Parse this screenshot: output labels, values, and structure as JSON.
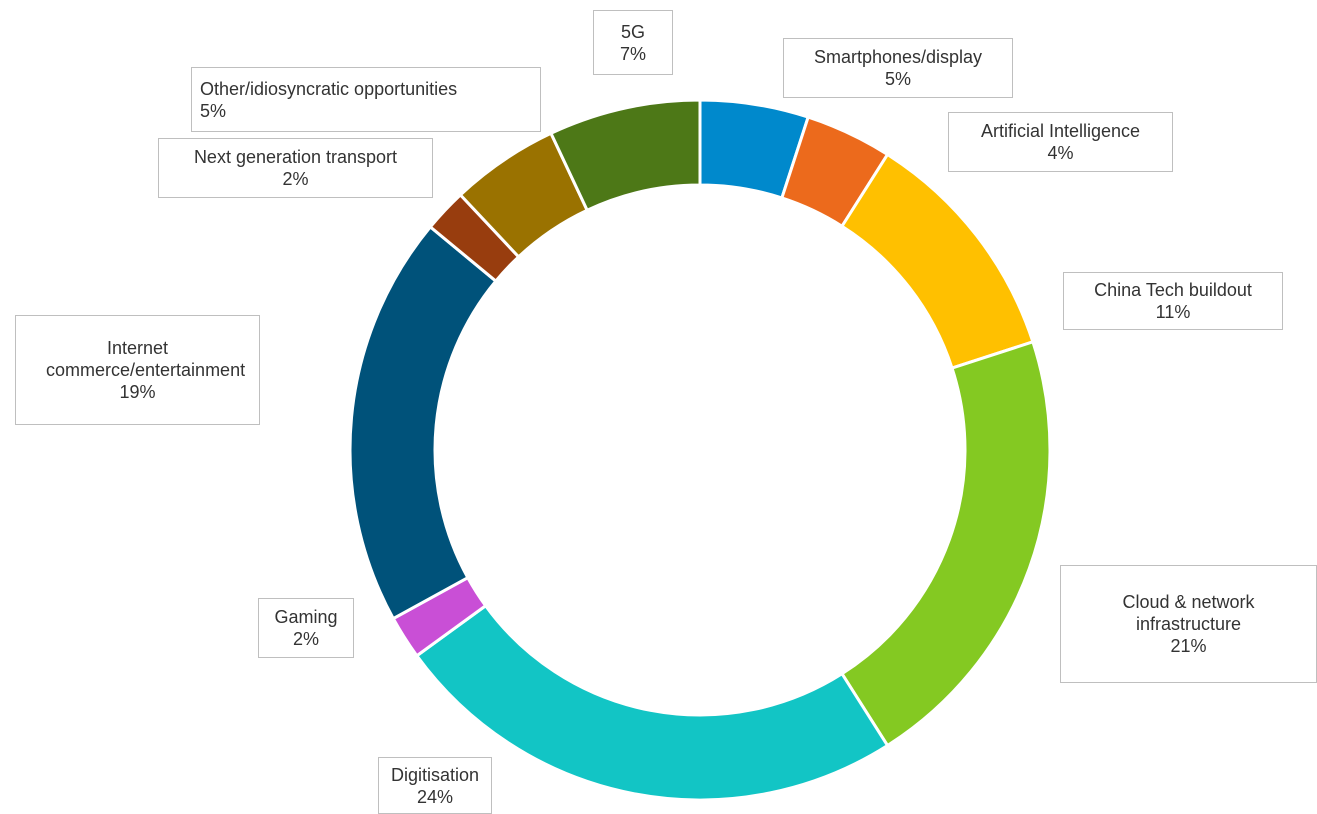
{
  "chart_data": {
    "type": "donut",
    "categories": [
      "Smartphones/display",
      "Artificial Intelligence",
      "China Tech buildout",
      "Cloud & network infrastructure",
      "Digitisation",
      "Gaming",
      "Internet commerce/entertainment",
      "Next generation transport",
      "Other/idiosyncratic opportunities",
      "5G"
    ],
    "values": [
      5,
      4,
      11,
      21,
      24,
      2,
      19,
      2,
      5,
      7
    ],
    "value_labels": [
      "5%",
      "4%",
      "11%",
      "21%",
      "24%",
      "2%",
      "19%",
      "2%",
      "5%",
      "7%"
    ],
    "colors": [
      "#0089cc",
      "#ec6a1c",
      "#ffc000",
      "#84c922",
      "#12c5c5",
      "#c94fd6",
      "#00527a",
      "#983d0e",
      "#9a7200",
      "#4d7817"
    ]
  }
}
